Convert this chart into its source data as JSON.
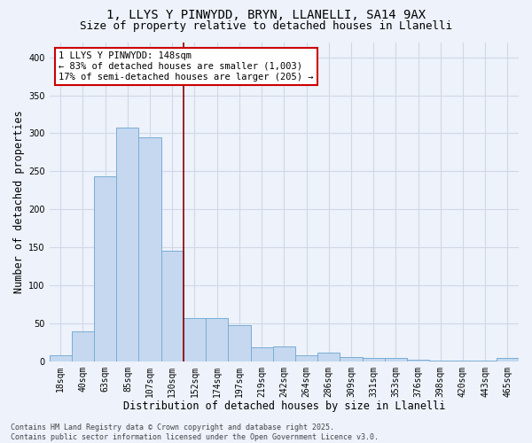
{
  "title_line1": "1, LLYS Y PINWYDD, BRYN, LLANELLI, SA14 9AX",
  "title_line2": "Size of property relative to detached houses in Llanelli",
  "xlabel": "Distribution of detached houses by size in Llanelli",
  "ylabel": "Number of detached properties",
  "categories": [
    "18sqm",
    "40sqm",
    "63sqm",
    "85sqm",
    "107sqm",
    "130sqm",
    "152sqm",
    "174sqm",
    "197sqm",
    "219sqm",
    "242sqm",
    "264sqm",
    "286sqm",
    "309sqm",
    "331sqm",
    "353sqm",
    "376sqm",
    "398sqm",
    "420sqm",
    "443sqm",
    "465sqm"
  ],
  "values": [
    8,
    39,
    243,
    307,
    295,
    145,
    57,
    57,
    47,
    18,
    19,
    8,
    11,
    5,
    4,
    4,
    2,
    1,
    1,
    1,
    4
  ],
  "bar_color": "#c5d8f0",
  "bar_edge_color": "#7aadd4",
  "vline_x": 6.0,
  "vline_color": "#8b0000",
  "annotation_text": "1 LLYS Y PINWYDD: 148sqm\n← 83% of detached houses are smaller (1,003)\n17% of semi-detached houses are larger (205) →",
  "annotation_box_color": "#cc0000",
  "background_color": "#edf2fb",
  "grid_color": "#d0d8e8",
  "ylim": [
    0,
    420
  ],
  "yticks": [
    0,
    50,
    100,
    150,
    200,
    250,
    300,
    350,
    400
  ],
  "footer_text": "Contains HM Land Registry data © Crown copyright and database right 2025.\nContains public sector information licensed under the Open Government Licence v3.0.",
  "title_fontsize": 10,
  "subtitle_fontsize": 9,
  "tick_fontsize": 7,
  "xlabel_fontsize": 8.5,
  "ylabel_fontsize": 8.5,
  "annotation_fontsize": 7.5,
  "footer_fontsize": 6
}
